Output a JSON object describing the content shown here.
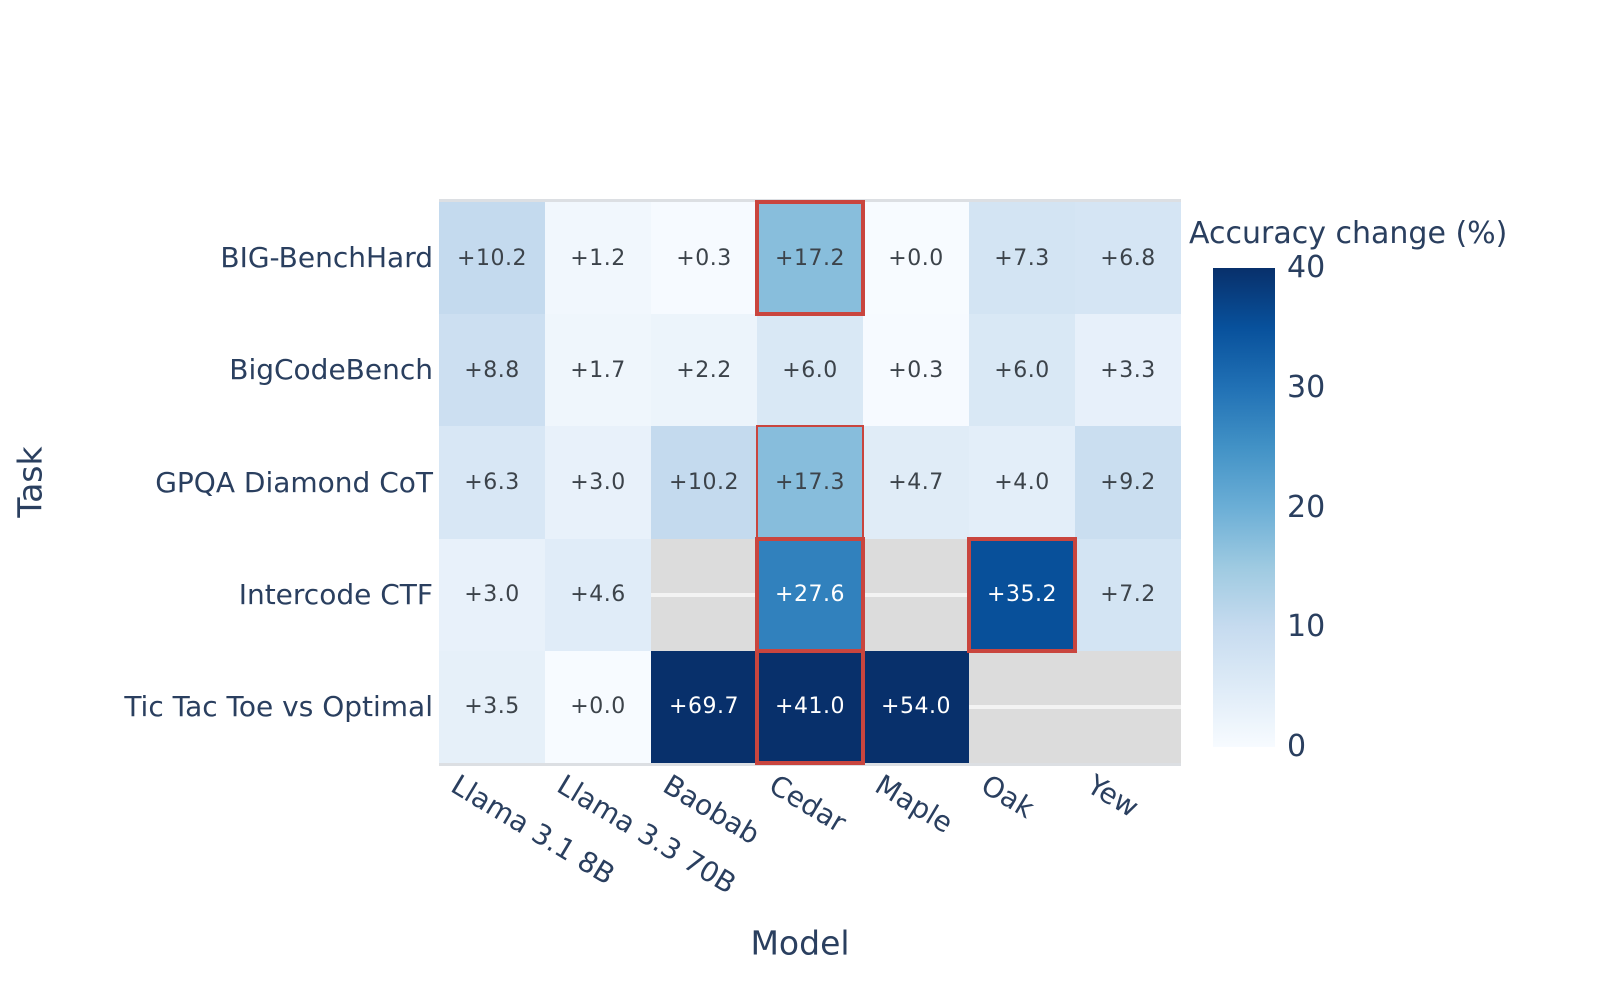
{
  "colors": {
    "background": "#ffffff",
    "axis_text": "#2a3f5f",
    "cell_text_dark": "#3c434a",
    "cell_text_light": "#ffffff",
    "missing_cell": "#dcdcdc",
    "missing_gridline": "rgba(255,255,255,0.65)",
    "axis_line": "#dcdfe3",
    "highlight_red": "#c9453e",
    "colorscale_stops": [
      [
        0,
        "#f7fbff"
      ],
      [
        0.125,
        "#deebf7"
      ],
      [
        0.25,
        "#c6dbef"
      ],
      [
        0.375,
        "#9ecae1"
      ],
      [
        0.5,
        "#6baed6"
      ],
      [
        0.625,
        "#4292c6"
      ],
      [
        0.75,
        "#2171b5"
      ],
      [
        0.875,
        "#08519c"
      ],
      [
        1,
        "#08306b"
      ]
    ]
  },
  "chart_data": {
    "type": "heatmap",
    "xlabel": "Model",
    "ylabel": "Task",
    "x_labels": [
      "Llama 3.1 8B",
      "Llama 3.3 70B",
      "Baobab",
      "Cedar",
      "Maple",
      "Oak",
      "Yew"
    ],
    "y_labels": [
      "BIG-BenchHard",
      "BigCodeBench",
      "GPQA Diamond CoT",
      "Intercode CTF",
      "Tic Tac Toe vs Optimal"
    ],
    "values": [
      [
        10.2,
        1.2,
        0.3,
        17.2,
        0.0,
        7.3,
        6.8
      ],
      [
        8.8,
        1.7,
        2.2,
        6.0,
        0.3,
        6.0,
        3.3
      ],
      [
        6.3,
        3.0,
        10.2,
        17.3,
        4.7,
        4.0,
        9.2
      ],
      [
        3.0,
        4.6,
        null,
        27.6,
        null,
        35.2,
        7.2
      ],
      [
        3.5,
        0.0,
        69.7,
        41.0,
        54.0,
        null,
        null
      ]
    ],
    "cell_labels": [
      [
        "+10.2",
        "+1.2",
        "+0.3",
        "+17.2",
        "+0.0",
        "+7.3",
        "+6.8"
      ],
      [
        "+8.8",
        "+1.7",
        "+2.2",
        "+6.0",
        "+0.3",
        "+6.0",
        "+3.3"
      ],
      [
        "+6.3",
        "+3.0",
        "+10.2",
        "+17.3",
        "+4.7",
        "+4.0",
        "+9.2"
      ],
      [
        "+3.0",
        "+4.6",
        null,
        "+27.6",
        null,
        "+35.2",
        "+7.2"
      ],
      [
        "+3.5",
        "+0.0",
        "+69.7",
        "+41.0",
        "+54.0",
        null,
        null
      ]
    ],
    "zmin": 0,
    "zmax": 40,
    "grid": "off",
    "colorbar": {
      "title": "Accuracy change (%)",
      "position": "right",
      "tick_values": [
        40,
        30,
        20,
        10,
        0
      ],
      "tick_labels": [
        "40",
        "30",
        "20",
        "10",
        "0"
      ]
    },
    "highlighted_cells": [
      {
        "row": 0,
        "col": 3,
        "border_px": 4
      },
      {
        "row": 2,
        "col": 3,
        "border_px": 2
      },
      {
        "row": 3,
        "col": 3,
        "border_px": 4
      },
      {
        "row": 3,
        "col": 5,
        "border_px": 4
      },
      {
        "row": 4,
        "col": 3,
        "border_px": 4
      }
    ]
  }
}
